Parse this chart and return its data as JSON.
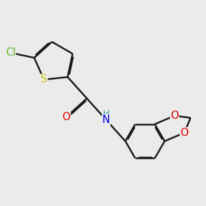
{
  "background_color": "#ebebeb",
  "bond_color": "#1a1a1a",
  "bond_width": 1.8,
  "atom_colors": {
    "Cl": "#6ab82a",
    "S": "#c8c800",
    "O": "#e00000",
    "N": "#0000e0",
    "C": "#1a1a1a"
  },
  "font_size": 10.5,
  "figsize": [
    3.0,
    3.0
  ],
  "dpi": 100
}
